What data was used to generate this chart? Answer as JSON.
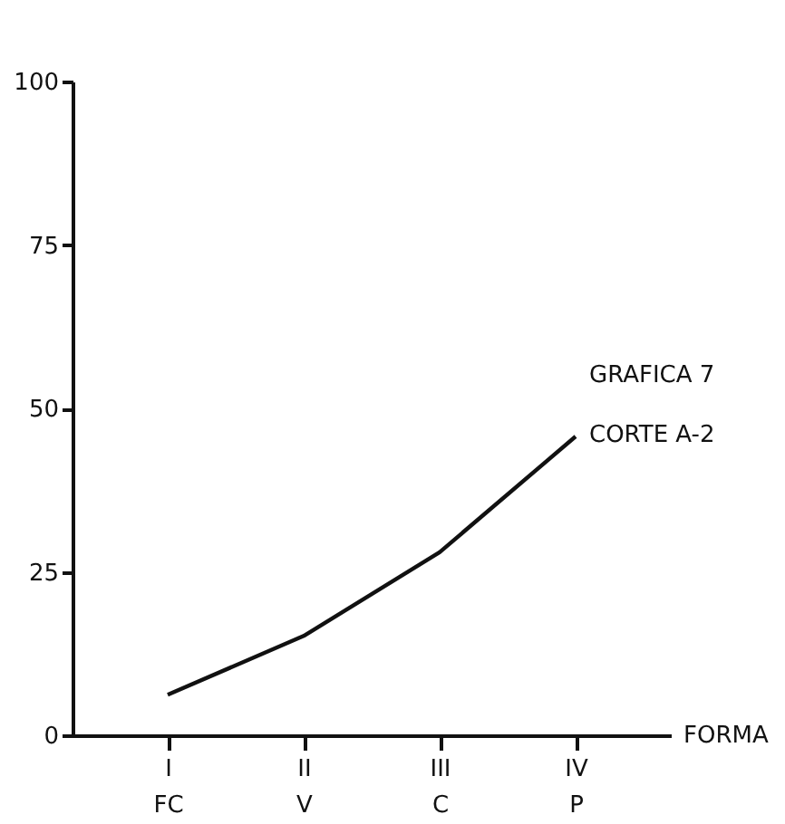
{
  "chart_data": {
    "type": "line",
    "title": "GRAFICA 7",
    "annotations": [
      "CORTE A-2"
    ],
    "xlabel": "FORMA",
    "categories": [
      "I\nFC",
      "II\nV",
      "III\nC",
      "IV\nP"
    ],
    "series": [
      {
        "color": "#111111",
        "values": [
          6.2,
          15.2,
          28,
          45.7
        ]
      }
    ],
    "ylim": [
      0,
      100
    ],
    "yticks": [
      0,
      25,
      50,
      75,
      100
    ],
    "grid": false,
    "marker": "none",
    "line_style": "solid"
  }
}
